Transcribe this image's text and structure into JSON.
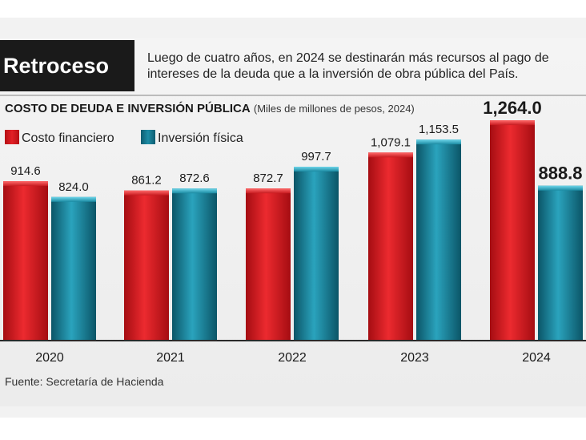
{
  "header": {
    "title": "Retroceso",
    "description": "Luego de cuatro años, en 2024 se destinarán más recursos al pago de intereses de la deuda que a la inversión de obra pública del País."
  },
  "chart_data": {
    "type": "bar",
    "title": "COSTO DE DEUDA E INVERSIÓN PÚBLICA",
    "subtitle": "(Miles de millones de pesos, 2024)",
    "categories": [
      "2020",
      "2021",
      "2022",
      "2023",
      "2024"
    ],
    "series": [
      {
        "name": "Costo financiero",
        "color": "#d81c22",
        "values": [
          914.6,
          861.2,
          872.7,
          1079.1,
          1264.0
        ],
        "labels": [
          "914.6",
          "861.2",
          "872.7",
          "1,079.1",
          "1,264.0"
        ]
      },
      {
        "name": "Inversión física",
        "color": "#157a92",
        "values": [
          824.0,
          872.6,
          997.7,
          1153.5,
          888.8
        ],
        "labels": [
          "824.0",
          "872.6",
          "997.7",
          "1,153.5",
          "888.8"
        ]
      }
    ],
    "ylim": [
      0,
      1300
    ],
    "grid": false,
    "legend": "top-left"
  },
  "source": "Fuente: Secretaría de Hacienda"
}
